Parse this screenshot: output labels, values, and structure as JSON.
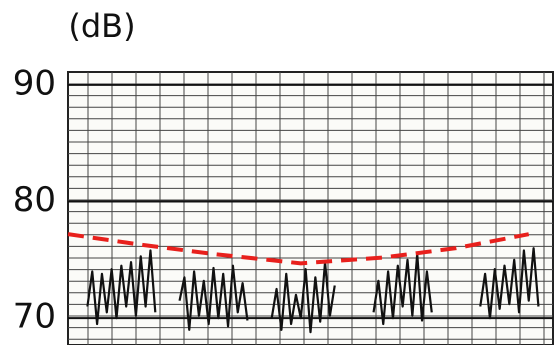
{
  "chart_data": {
    "type": "line",
    "title": "(dB)",
    "xlim": [
      0,
      100
    ],
    "ylim": [
      67.7,
      91.1
    ],
    "yticks": [
      70,
      80,
      90
    ],
    "grid": true,
    "series": [
      {
        "color": "#111111",
        "style": "solid",
        "x": [
          4,
          5,
          6,
          7,
          8,
          9,
          10,
          11,
          12,
          13,
          14,
          15,
          16,
          17,
          18,
          20,
          23,
          24,
          25,
          26,
          27,
          28,
          29,
          30,
          31,
          32,
          33,
          34,
          35,
          36,
          37,
          39,
          42,
          43,
          44,
          45,
          46,
          47,
          48,
          49,
          50,
          51,
          52,
          53,
          54,
          55,
          59,
          63,
          64,
          65,
          66,
          67,
          68,
          69,
          70,
          71,
          72,
          73,
          74,
          75,
          80,
          85,
          86,
          87,
          88,
          89,
          90,
          91,
          92,
          93,
          94,
          95,
          96,
          97
        ],
        "values": [
          71,
          74,
          69.5,
          73.8,
          70.5,
          74.2,
          70,
          74.5,
          71,
          74.8,
          70.2,
          75.3,
          71,
          75.8,
          70.5,
          null,
          71.5,
          73.5,
          69,
          74,
          70.2,
          73.2,
          69.5,
          74.3,
          70,
          73.8,
          69.3,
          74.5,
          70.5,
          73,
          69.8,
          null,
          70,
          72.5,
          69,
          73.8,
          69.5,
          72,
          70,
          74.2,
          68.8,
          73.5,
          69.7,
          74.8,
          70.2,
          72.8,
          null,
          70.5,
          73.2,
          69.5,
          74,
          70,
          74.5,
          71,
          75,
          70.2,
          75.5,
          69.8,
          74,
          70.5,
          null,
          71,
          73.8,
          70,
          74.2,
          70.8,
          74.5,
          71.2,
          75,
          70.5,
          75.8,
          71.5,
          76,
          71
        ]
      },
      {
        "color": "#e8201c",
        "style": "dashed",
        "x": [
          0,
          15,
          30,
          48,
          65,
          80,
          95
        ],
        "values": [
          77.2,
          76.3,
          75.5,
          74.7,
          75.2,
          76.0,
          77.2
        ]
      }
    ]
  }
}
